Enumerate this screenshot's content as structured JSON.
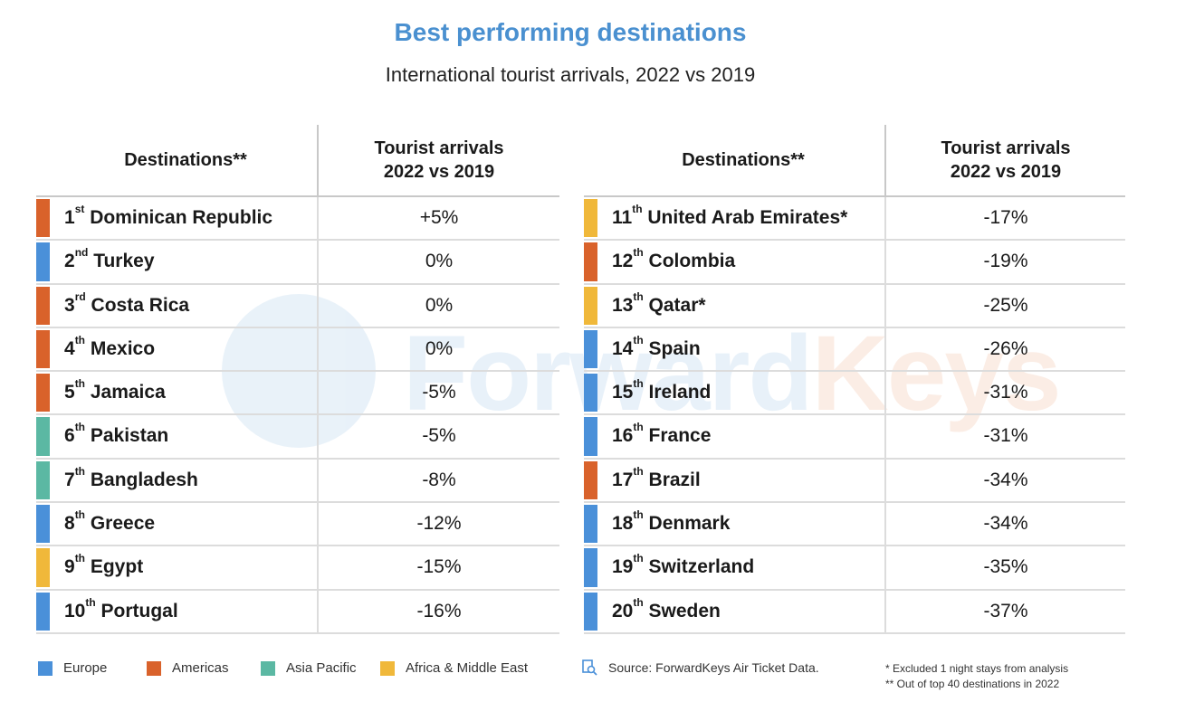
{
  "colors": {
    "Europe": "#4a90d9",
    "Americas": "#d9622b",
    "Asia Pacific": "#5bb8a3",
    "Africa & Middle East": "#f0b83a",
    "title": "#4a90d0"
  },
  "chart_data": {
    "type": "table",
    "title": "Best performing destinations",
    "subtitle": "International tourist arrivals, 2022 vs 2019",
    "columns": [
      "Destinations**",
      "Tourist arrivals\n2022 vs 2019"
    ],
    "rows": [
      {
        "rank": "1",
        "suffix": "st",
        "name": "Dominican Republic",
        "value": "+5%",
        "region": "Americas"
      },
      {
        "rank": "2",
        "suffix": "nd",
        "name": "Turkey",
        "value": "0%",
        "region": "Europe"
      },
      {
        "rank": "3",
        "suffix": "rd",
        "name": "Costa Rica",
        "value": "0%",
        "region": "Americas"
      },
      {
        "rank": "4",
        "suffix": "th",
        "name": "Mexico",
        "value": "0%",
        "region": "Americas"
      },
      {
        "rank": "5",
        "suffix": "th",
        "name": "Jamaica",
        "value": "-5%",
        "region": "Americas"
      },
      {
        "rank": "6",
        "suffix": "th",
        "name": "Pakistan",
        "value": "-5%",
        "region": "Asia Pacific"
      },
      {
        "rank": "7",
        "suffix": "th",
        "name": "Bangladesh",
        "value": "-8%",
        "region": "Asia Pacific"
      },
      {
        "rank": "8",
        "suffix": "th",
        "name": "Greece",
        "value": "-12%",
        "region": "Europe"
      },
      {
        "rank": "9",
        "suffix": "th",
        "name": "Egypt",
        "value": "-15%",
        "region": "Africa & Middle East"
      },
      {
        "rank": "10",
        "suffix": "th",
        "name": "Portugal",
        "value": "-16%",
        "region": "Europe"
      },
      {
        "rank": "11",
        "suffix": "th",
        "name": "United Arab Emirates*",
        "value": "-17%",
        "region": "Africa & Middle East"
      },
      {
        "rank": "12",
        "suffix": "th",
        "name": "Colombia",
        "value": "-19%",
        "region": "Americas"
      },
      {
        "rank": "13",
        "suffix": "th",
        "name": "Qatar*",
        "value": "-25%",
        "region": "Africa & Middle East"
      },
      {
        "rank": "14",
        "suffix": "th",
        "name": "Spain",
        "value": "-26%",
        "region": "Europe"
      },
      {
        "rank": "15",
        "suffix": "th",
        "name": "Ireland",
        "value": "-31%",
        "region": "Europe"
      },
      {
        "rank": "16",
        "suffix": "th",
        "name": "France",
        "value": "-31%",
        "region": "Europe"
      },
      {
        "rank": "17",
        "suffix": "th",
        "name": "Brazil",
        "value": "-34%",
        "region": "Americas"
      },
      {
        "rank": "18",
        "suffix": "th",
        "name": "Denmark",
        "value": "-34%",
        "region": "Europe"
      },
      {
        "rank": "19",
        "suffix": "th",
        "name": "Switzerland",
        "value": "-35%",
        "region": "Europe"
      },
      {
        "rank": "20",
        "suffix": "th",
        "name": "Sweden",
        "value": "-37%",
        "region": "Europe"
      }
    ],
    "legend": [
      "Europe",
      "Americas",
      "Asia Pacific",
      "Africa & Middle East"
    ],
    "legend_placement": "bottom-left"
  },
  "header": {
    "title": "Best performing destinations",
    "subtitle": "International tourist arrivals, 2022 vs 2019"
  },
  "table_headers": {
    "destinations": "Destinations**",
    "arrivals_line1": "Tourist arrivals",
    "arrivals_line2": "2022 vs 2019"
  },
  "watermark": {
    "part1": "Forward",
    "part2": "Keys"
  },
  "footer": {
    "source": "Source: ForwardKeys Air Ticket Data.",
    "note1": "* Excluded 1 night stays from analysis",
    "note2": "** Out of top 40 destinations in 2022"
  }
}
